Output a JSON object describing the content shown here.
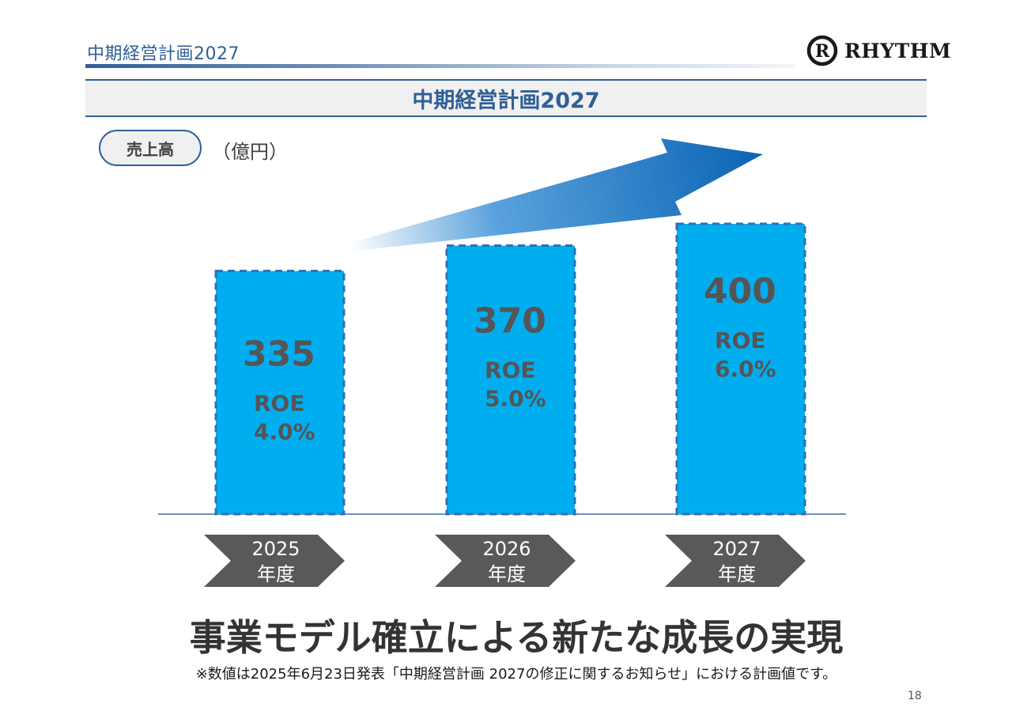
{
  "header": {
    "title": "中期経営計画2027"
  },
  "logo": {
    "text": "RHYTHM",
    "mark": "R"
  },
  "banner": {
    "title": "中期経営計画2027"
  },
  "metric": {
    "label": "売上高",
    "unit": "（億円）"
  },
  "chart_data": {
    "type": "bar",
    "title": "中期経営計画2027",
    "ylabel": "売上高（億円）",
    "ylim": [
      0,
      400
    ],
    "categories": [
      {
        "line1": "2025",
        "line2": "年度"
      },
      {
        "line1": "2026",
        "line2": "年度"
      },
      {
        "line1": "2027",
        "line2": "年度"
      }
    ],
    "values": [
      335,
      370,
      400
    ],
    "value_labels": [
      "335",
      "370",
      "400"
    ],
    "roe_label": "ROE",
    "roe_values": [
      "4.0%",
      "5.0%",
      "6.0%"
    ],
    "bar_color": "#00aeef",
    "bar_border_color": "#2f6fb6",
    "arrow_color": "#0a64b4",
    "chevron_color": "#595959",
    "trend": "up"
  },
  "headline": "事業モデル確立による新たな成長の実現",
  "note": "※数値は2025年6月23日発表「中期経営計画 2027の修正に関するお知らせ」における計画値です。",
  "page_number": "18"
}
